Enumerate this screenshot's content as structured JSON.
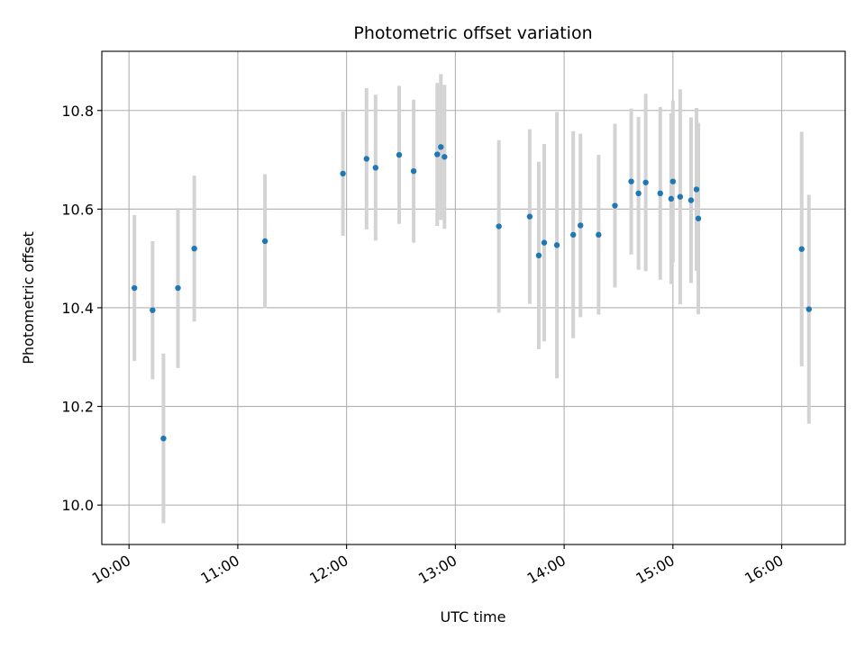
{
  "chart_data": {
    "type": "scatter",
    "title": "Photometric offset variation",
    "xlabel": "UTC time",
    "ylabel": "Photometric offset",
    "xlim": [
      "09:45",
      "16:35"
    ],
    "ylim": [
      9.92,
      10.92
    ],
    "xticks": [
      "10:00",
      "11:00",
      "12:00",
      "13:00",
      "14:00",
      "15:00",
      "16:00"
    ],
    "yticks": [
      10.0,
      10.2,
      10.4,
      10.6,
      10.8
    ],
    "grid": true,
    "colors": {
      "point": "#1f77b4",
      "errorbar": "#d3d3d3",
      "grid": "#b0b0b0"
    },
    "points": [
      {
        "x": "10:03",
        "y": 10.44,
        "err": 0.148
      },
      {
        "x": "10:13",
        "y": 10.395,
        "err": 0.14
      },
      {
        "x": "10:19",
        "y": 10.135,
        "err": 0.172
      },
      {
        "x": "10:27",
        "y": 10.44,
        "err": 0.162
      },
      {
        "x": "10:36",
        "y": 10.52,
        "err": 0.148
      },
      {
        "x": "11:15",
        "y": 10.535,
        "err": 0.136
      },
      {
        "x": "11:58",
        "y": 10.672,
        "err": 0.126
      },
      {
        "x": "12:11",
        "y": 10.702,
        "err": 0.143
      },
      {
        "x": "12:16",
        "y": 10.684,
        "err": 0.148
      },
      {
        "x": "12:29",
        "y": 10.71,
        "err": 0.14
      },
      {
        "x": "12:37",
        "y": 10.677,
        "err": 0.145
      },
      {
        "x": "12:50",
        "y": 10.711,
        "err": 0.145
      },
      {
        "x": "12:52",
        "y": 10.726,
        "err": 0.148
      },
      {
        "x": "12:54",
        "y": 10.706,
        "err": 0.146
      },
      {
        "x": "13:24",
        "y": 10.565,
        "err": 0.175
      },
      {
        "x": "13:41",
        "y": 10.585,
        "err": 0.177
      },
      {
        "x": "13:46",
        "y": 10.506,
        "err": 0.19
      },
      {
        "x": "13:49",
        "y": 10.532,
        "err": 0.2
      },
      {
        "x": "13:56",
        "y": 10.527,
        "err": 0.27
      },
      {
        "x": "14:05",
        "y": 10.548,
        "err": 0.21
      },
      {
        "x": "14:09",
        "y": 10.567,
        "err": 0.186
      },
      {
        "x": "14:19",
        "y": 10.548,
        "err": 0.162
      },
      {
        "x": "14:28",
        "y": 10.607,
        "err": 0.166
      },
      {
        "x": "14:37",
        "y": 10.656,
        "err": 0.148
      },
      {
        "x": "14:41",
        "y": 10.632,
        "err": 0.155
      },
      {
        "x": "14:45",
        "y": 10.654,
        "err": 0.18
      },
      {
        "x": "14:53",
        "y": 10.632,
        "err": 0.175
      },
      {
        "x": "14:59",
        "y": 10.621,
        "err": 0.173
      },
      {
        "x": "15:00",
        "y": 10.656,
        "err": 0.164
      },
      {
        "x": "15:04",
        "y": 10.625,
        "err": 0.218
      },
      {
        "x": "15:10",
        "y": 10.618,
        "err": 0.168
      },
      {
        "x": "15:13",
        "y": 10.64,
        "err": 0.165
      },
      {
        "x": "15:14",
        "y": 10.581,
        "err": 0.194
      },
      {
        "x": "16:11",
        "y": 10.519,
        "err": 0.238
      },
      {
        "x": "16:15",
        "y": 10.397,
        "err": 0.232
      }
    ]
  }
}
